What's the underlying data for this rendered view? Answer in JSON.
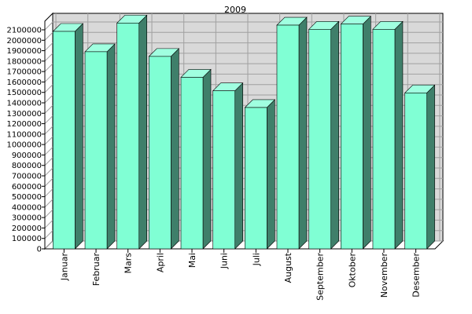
{
  "chart_data": {
    "type": "bar",
    "title": "2009",
    "xlabel": "",
    "ylabel": "",
    "categories": [
      "Januar",
      "Februar",
      "Mars",
      "April",
      "Mai",
      "Juni",
      "Juli",
      "August",
      "September",
      "Oktober",
      "November",
      "Desember"
    ],
    "values": [
      2085000,
      1890000,
      2165000,
      1845000,
      1645000,
      1515000,
      1355000,
      2145000,
      2105000,
      2155000,
      2105000,
      1495000
    ],
    "ylim": [
      0,
      2100000
    ],
    "ytick_step": 100000,
    "yticks": [
      "0",
      "100000",
      "200000",
      "300000",
      "400000",
      "500000",
      "600000",
      "700000",
      "800000",
      "900000",
      "1000000",
      "1100000",
      "1200000",
      "1300000",
      "1400000",
      "1500000",
      "1600000",
      "1700000",
      "1800000",
      "1900000",
      "2000000",
      "2100000"
    ],
    "grid": true,
    "style": "3d",
    "colors": {
      "bar_front": "#80ffd4",
      "bar_side": "#3f7f6a",
      "bar_top": "#a0ffe0",
      "bar_edge": "#000000",
      "wall": "#d9d9d9",
      "grid": "#a0a0a0"
    }
  }
}
